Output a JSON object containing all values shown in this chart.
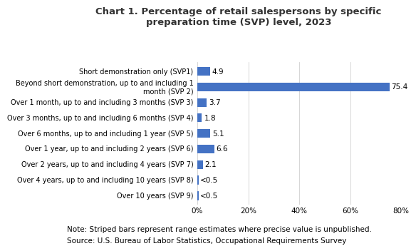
{
  "title": "Chart 1. Percentage of retail salespersons by specific\npreparation time (SVP) level, 2023",
  "categories": [
    "Short demonstration only (SVP1)",
    "Beyond short demonstration, up to and including 1\nmonth (SVP 2)",
    "Over 1 month, up to and including 3 months (SVP 3)",
    "Over 3 months, up to and including 6 months (SVP 4)",
    "Over 6 months, up to and including 1 year (SVP 5)",
    "Over 1 year, up to and including 2 years (SVP 6)",
    "Over 2 years, up to and including 4 years (SVP 7)",
    "Over 4 years, up to and including 10 years (SVP 8)",
    "Over 10 years (SVP 9)"
  ],
  "values": [
    4.9,
    75.4,
    3.7,
    1.8,
    5.1,
    6.6,
    2.1,
    0.3,
    0.3
  ],
  "labels": [
    "4.9",
    "75.4",
    "3.7",
    "1.8",
    "5.1",
    "6.6",
    "2.1",
    "<0.5",
    "<0.5"
  ],
  "striped": [
    false,
    false,
    false,
    false,
    false,
    false,
    false,
    true,
    true
  ],
  "bar_color": "#4472c4",
  "stripe_color": "#4472c4",
  "background_color": "#ffffff",
  "xlim": [
    0,
    80
  ],
  "xticks": [
    0,
    20,
    40,
    60,
    80
  ],
  "xtick_labels": [
    "0%",
    "20%",
    "40%",
    "60%",
    "80%"
  ],
  "note_line1": "Note: Striped bars represent range estimates where precise value is unpublished.",
  "note_line2": "Source: U.S. Bureau of Labor Statistics, Occupational Requirements Survey",
  "title_fontsize": 9.5,
  "label_fontsize": 7.0,
  "note_fontsize": 7.5,
  "tick_fontsize": 7.5,
  "value_label_fontsize": 7.5
}
